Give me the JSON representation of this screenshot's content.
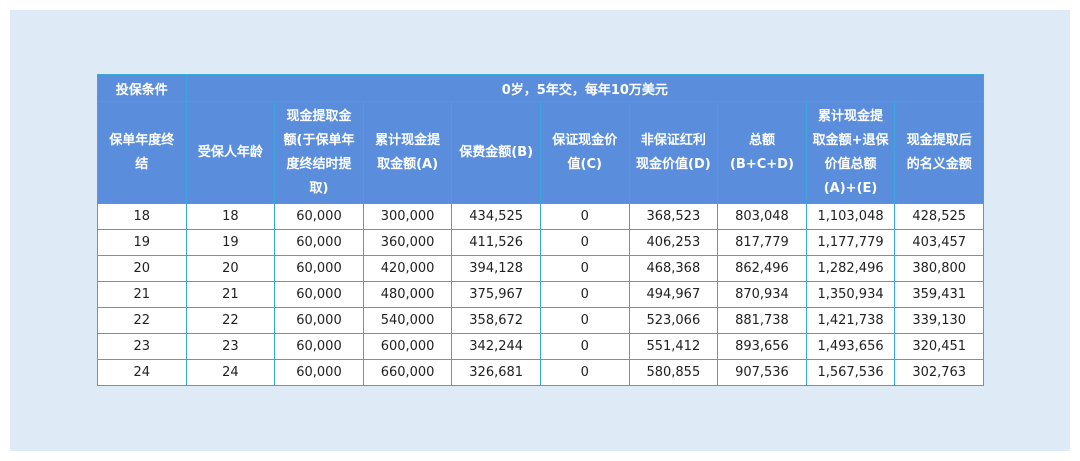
{
  "table": {
    "title_row": [
      "投保条件",
      "0岁，5年交，每年10万美元"
    ],
    "headers": [
      [
        "保单年度终",
        "结"
      ],
      [
        "受保人年龄"
      ],
      [
        "现金提取金",
        "额(于保单年",
        "度终结时提",
        "取)"
      ],
      [
        "累计现金提",
        "取金额(A)"
      ],
      [
        "保费金额(B)"
      ],
      [
        "保证现金价",
        "值(C)"
      ],
      [
        "非保证红利",
        "现金价值(D)"
      ],
      [
        "总额",
        "(B+C+D)"
      ],
      [
        "累计现金提",
        "取金额+退保",
        "价值总额",
        "(A)+(E)"
      ],
      [
        "现金提取后",
        "的名义金额"
      ]
    ],
    "rows": [
      [
        "18",
        "18",
        "60,000",
        "300,000",
        "434,525",
        "0",
        "368,523",
        "803,048",
        "1,103,048",
        "428,525"
      ],
      [
        "19",
        "19",
        "60,000",
        "360,000",
        "411,526",
        "0",
        "406,253",
        "817,779",
        "1,177,779",
        "403,457"
      ],
      [
        "20",
        "20",
        "60,000",
        "420,000",
        "394,128",
        "0",
        "468,368",
        "862,496",
        "1,282,496",
        "380,800"
      ],
      [
        "21",
        "21",
        "60,000",
        "480,000",
        "375,967",
        "0",
        "494,967",
        "870,934",
        "1,350,934",
        "359,431"
      ],
      [
        "22",
        "22",
        "60,000",
        "540,000",
        "358,672",
        "0",
        "523,066",
        "881,738",
        "1,421,738",
        "339,130"
      ],
      [
        "23",
        "23",
        "60,000",
        "600,000",
        "342,244",
        "0",
        "551,412",
        "893,656",
        "1,493,656",
        "320,451"
      ],
      [
        "24",
        "24",
        "60,000",
        "660,000",
        "326,681",
        "0",
        "580,855",
        "907,536",
        "1,567,536",
        "302,763"
      ]
    ]
  }
}
